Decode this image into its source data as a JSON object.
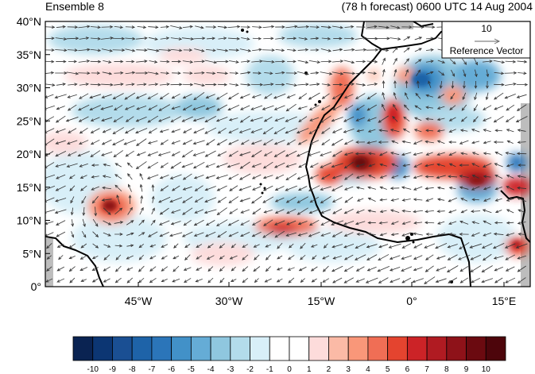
{
  "map": {
    "title_left": "Ensemble 8",
    "title_right": "(78 h forecast) 0600 UTC 14 Aug 2004",
    "lat_ticks": [
      "40°N",
      "35°N",
      "30°N",
      "25°N",
      "20°N",
      "15°N",
      "10°N",
      "5°N",
      "0°"
    ],
    "lon_ticks": [
      "45°W",
      "30°W",
      "15°W",
      "0°",
      "15°E"
    ],
    "reference_vector": {
      "magnitude_label": "10",
      "caption": "Reference Vector"
    },
    "colorbar": {
      "labels": [
        "-10",
        "-9",
        "-8",
        "-7",
        "-6",
        "-5",
        "-4",
        "-3",
        "-2",
        "-1",
        "0",
        "1",
        "2",
        "3",
        "4",
        "5",
        "6",
        "7",
        "8",
        "9",
        "10"
      ],
      "colors": [
        "#0a2352",
        "#0c3673",
        "#1a4f93",
        "#1e63a8",
        "#2b75b9",
        "#4291c8",
        "#65acd6",
        "#8fc7df",
        "#b3dceb",
        "#d8eff8",
        "#ffffff",
        "#ffffff",
        "#fddcdb",
        "#fbbaa6",
        "#f99779",
        "#f06e55",
        "#e4442f",
        "#cc2327",
        "#b01b22",
        "#8e1219",
        "#6b0a10",
        "#4d050b"
      ]
    }
  }
}
